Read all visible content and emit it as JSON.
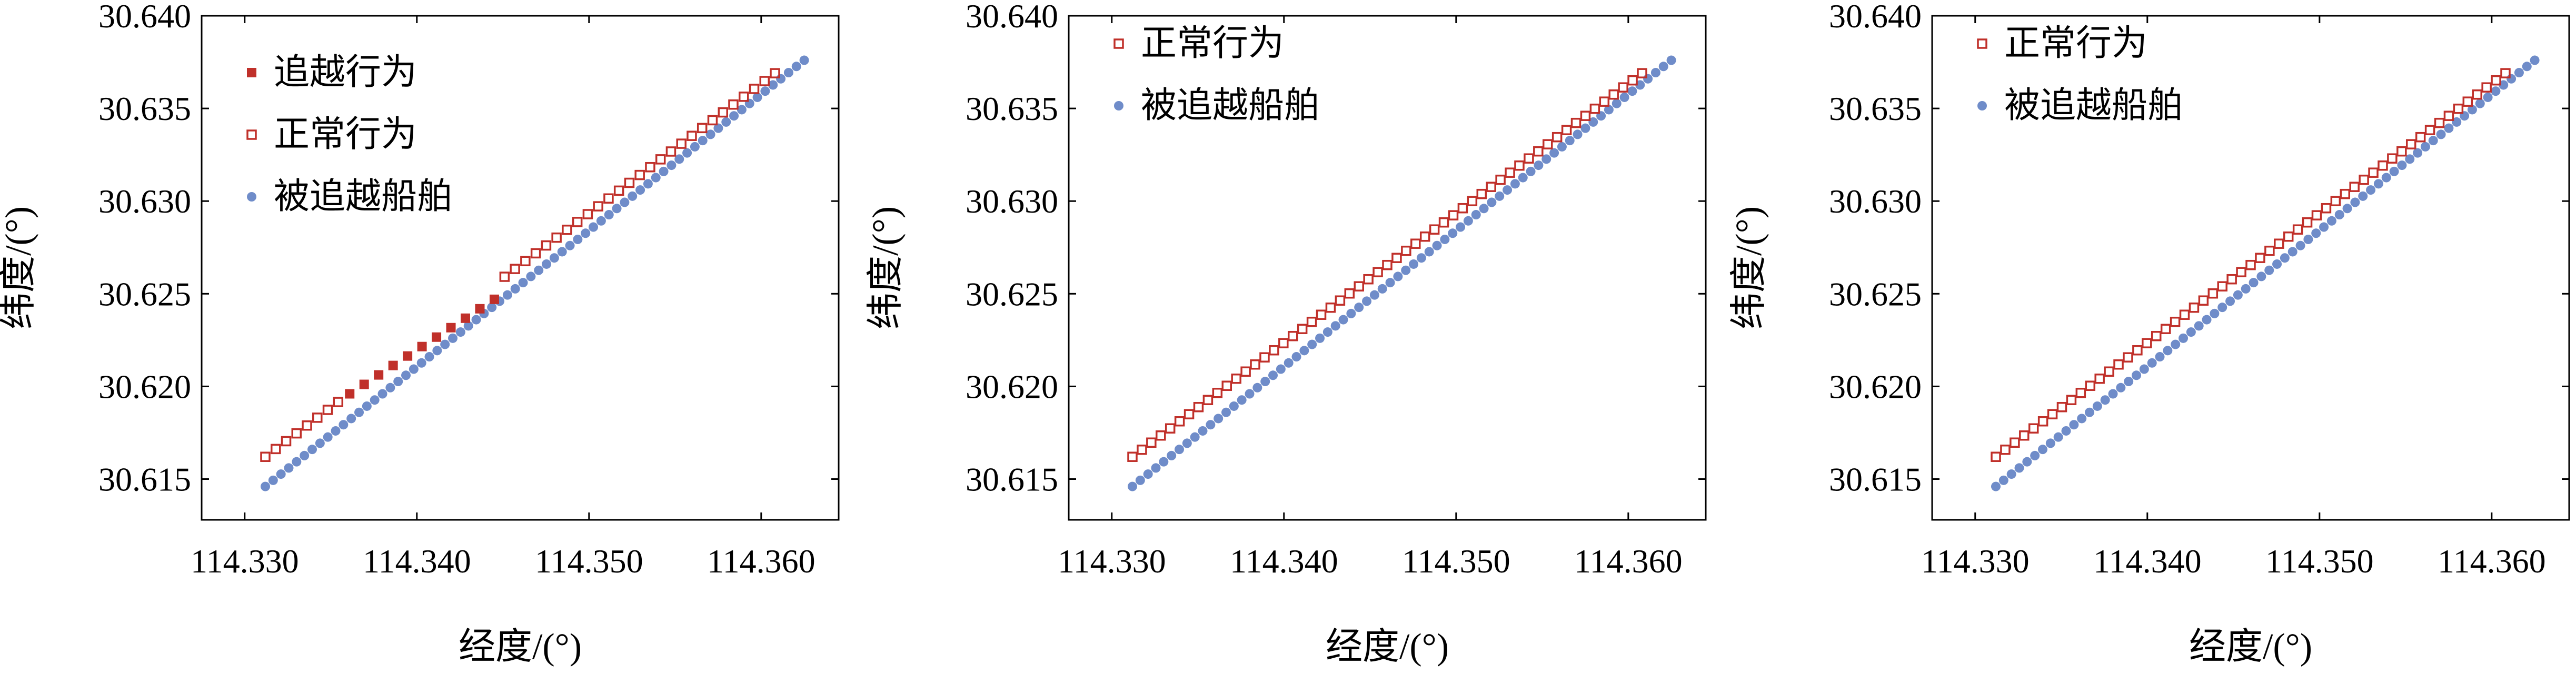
{
  "colors": {
    "overtaking": "#c0302a",
    "normal": "#c0302a",
    "overtaken": "#6f8cc9",
    "axis": "#000000",
    "background": "#ffffff"
  },
  "chart_data": [
    {
      "type": "scatter",
      "xlabel": "经度/(°)",
      "ylabel": "纬度/(°)",
      "xlim": [
        114.3275,
        114.3645
      ],
      "ylim": [
        30.6128,
        30.64
      ],
      "xticks": [
        "114.330",
        "114.340",
        "114.350",
        "114.360"
      ],
      "yticks": [
        "30.615",
        "30.620",
        "30.625",
        "30.630",
        "30.635",
        "30.640"
      ],
      "legend_position": "top-left",
      "series": [
        {
          "name": "追越行为",
          "marker": "filled-square",
          "x_start": 114.3361,
          "x_end": 114.3445,
          "y_start": 30.6196,
          "y_end": 30.6247,
          "points": 11
        },
        {
          "name": "正常行为",
          "marker": "open-square",
          "x_start": 114.3312,
          "x_end": 114.3608,
          "y_start": 30.6162,
          "y_end": 30.6369,
          "points": 50,
          "skip_x_range": [
            114.3355,
            114.345
          ]
        },
        {
          "name": "被追越船舶",
          "marker": "dot",
          "x_start": 114.3312,
          "x_end": 114.3625,
          "y_start": 30.6146,
          "y_end": 30.6376,
          "points": 70
        }
      ]
    },
    {
      "type": "scatter",
      "xlabel": "经度/(°)",
      "ylabel": "纬度/(°)",
      "xlim": [
        114.3275,
        114.3645
      ],
      "ylim": [
        30.6128,
        30.64
      ],
      "xticks": [
        "114.330",
        "114.340",
        "114.350",
        "114.360"
      ],
      "yticks": [
        "30.615",
        "30.620",
        "30.625",
        "30.630",
        "30.635",
        "30.640"
      ],
      "legend_position": "top-left",
      "series": [
        {
          "name": "正常行为",
          "marker": "open-square",
          "x_start": 114.3312,
          "x_end": 114.3608,
          "y_start": 30.6162,
          "y_end": 30.6369,
          "points": 55
        },
        {
          "name": "被追越船舶",
          "marker": "dot",
          "x_start": 114.3312,
          "x_end": 114.3625,
          "y_start": 30.6146,
          "y_end": 30.6376,
          "points": 70
        }
      ]
    },
    {
      "type": "scatter",
      "xlabel": "经度/(°)",
      "ylabel": "纬度/(°)",
      "xlim": [
        114.3275,
        114.3645
      ],
      "ylim": [
        30.6128,
        30.64
      ],
      "xticks": [
        "114.330",
        "114.340",
        "114.350",
        "114.360"
      ],
      "yticks": [
        "30.615",
        "30.620",
        "30.625",
        "30.630",
        "30.635",
        "30.640"
      ],
      "legend_position": "top-left",
      "series": [
        {
          "name": "正常行为",
          "marker": "open-square",
          "x_start": 114.3312,
          "x_end": 114.3608,
          "y_start": 30.6162,
          "y_end": 30.6369,
          "points": 55
        },
        {
          "name": "被追越船舶",
          "marker": "dot",
          "x_start": 114.3312,
          "x_end": 114.3625,
          "y_start": 30.6146,
          "y_end": 30.6376,
          "points": 70
        }
      ]
    }
  ]
}
